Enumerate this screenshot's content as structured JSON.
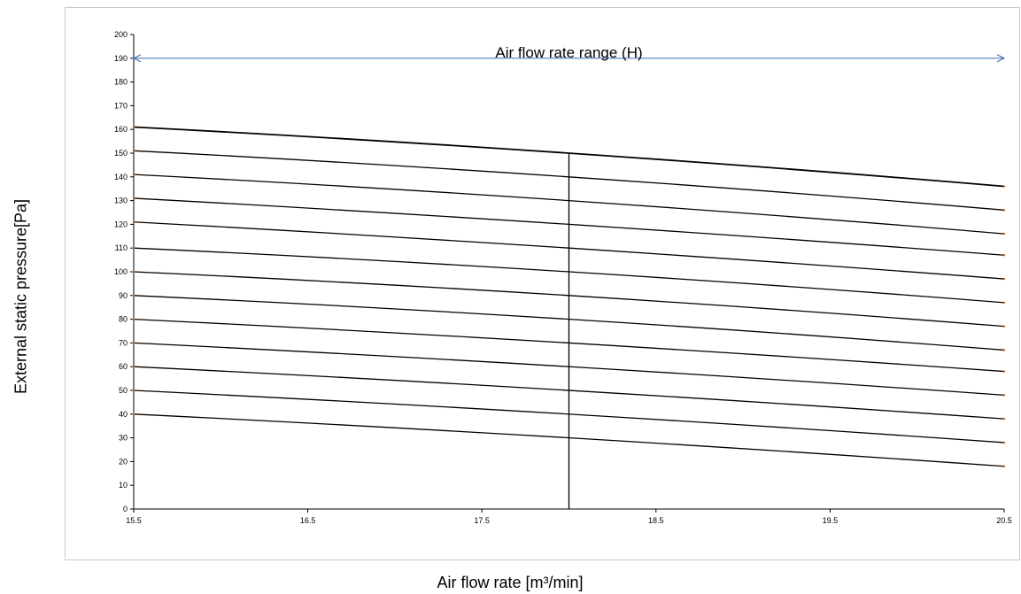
{
  "chart_data": {
    "type": "line",
    "title": "",
    "xlabel": "Air flow rate [m³/min]",
    "ylabel": "External static pressure[Pa]",
    "xlim": [
      15.5,
      20.5
    ],
    "ylim": [
      0,
      200
    ],
    "x_ticks": [
      "15.5",
      "16.5",
      "17.5",
      "18.5",
      "19.5",
      "20.5"
    ],
    "y_ticks": [
      "0",
      "10",
      "20",
      "30",
      "40",
      "50",
      "60",
      "70",
      "80",
      "90",
      "100",
      "110",
      "120",
      "130",
      "140",
      "150",
      "160",
      "170",
      "180",
      "190",
      "200"
    ],
    "grid": false,
    "curves": [
      {
        "x": [
          15.5,
          18.0,
          20.5
        ],
        "y": [
          161,
          150,
          136
        ]
      },
      {
        "x": [
          15.5,
          18.0,
          20.5
        ],
        "y": [
          151,
          140,
          126
        ]
      },
      {
        "x": [
          15.5,
          18.0,
          20.5
        ],
        "y": [
          141,
          130,
          116
        ]
      },
      {
        "x": [
          15.5,
          18.0,
          20.5
        ],
        "y": [
          131,
          120,
          107
        ]
      },
      {
        "x": [
          15.5,
          18.0,
          20.5
        ],
        "y": [
          121,
          110,
          97
        ]
      },
      {
        "x": [
          15.5,
          18.0,
          20.5
        ],
        "y": [
          110,
          100,
          87
        ]
      },
      {
        "x": [
          15.5,
          18.0,
          20.5
        ],
        "y": [
          100,
          90,
          77
        ]
      },
      {
        "x": [
          15.5,
          18.0,
          20.5
        ],
        "y": [
          90,
          80,
          67
        ]
      },
      {
        "x": [
          15.5,
          18.0,
          20.5
        ],
        "y": [
          80,
          70,
          58
        ]
      },
      {
        "x": [
          15.5,
          18.0,
          20.5
        ],
        "y": [
          70,
          60,
          48
        ]
      },
      {
        "x": [
          15.5,
          18.0,
          20.5
        ],
        "y": [
          60,
          50,
          38
        ]
      },
      {
        "x": [
          15.5,
          18.0,
          20.5
        ],
        "y": [
          50,
          40,
          28
        ]
      },
      {
        "x": [
          15.5,
          18.0,
          20.5
        ],
        "y": [
          40,
          30,
          18
        ]
      }
    ],
    "vertical_line": {
      "x": 18.0,
      "y_from": 0,
      "y_to": 150
    },
    "range_arrow": {
      "label": "Air flow rate range (H)",
      "x_from": 15.5,
      "x_to": 20.5,
      "y": 190,
      "color": "#4a7ebb"
    },
    "line_color": "#000000",
    "axis_color": "#000000"
  }
}
